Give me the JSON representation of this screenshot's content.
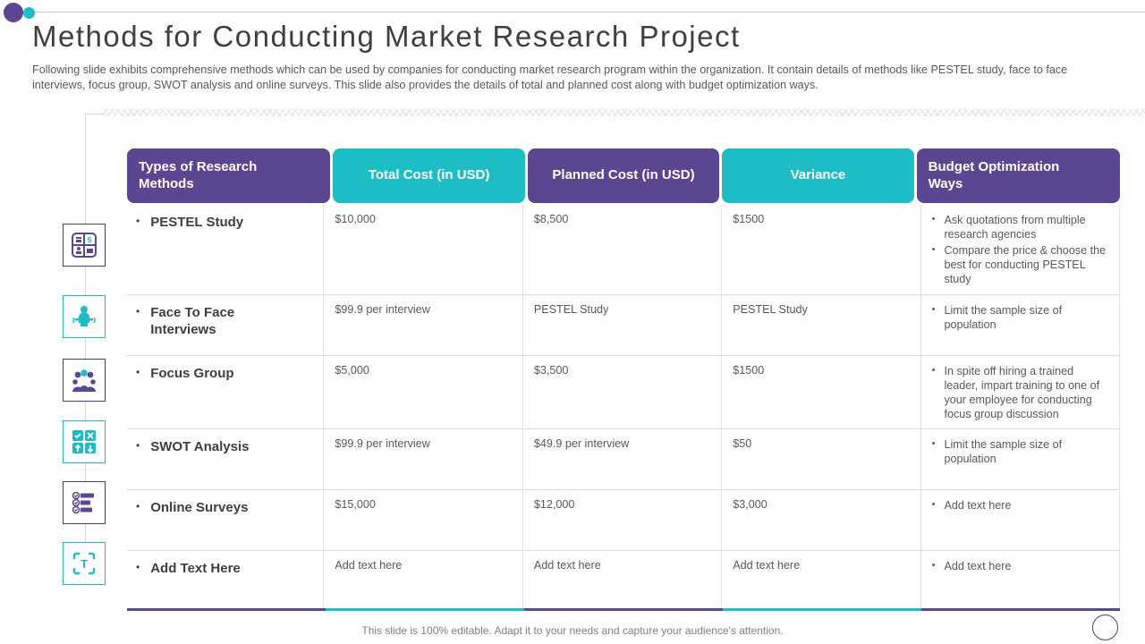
{
  "slide": {
    "title": "Methods for Conducting Market Research Project",
    "description": "Following slide exhibits comprehensive methods which can be used by companies for conducting market research program within the organization. It contain details of methods like PESTEL study, face to face interviews, focus group, SWOT analysis and online surveys. This slide also provides the details of total and planned cost along with budget optimization ways.",
    "footer_note": "This slide is 100% editable. Adapt it to your needs and capture your audience's attention."
  },
  "colors": {
    "purple": "#5b4692",
    "teal": "#1ebdc6"
  },
  "sidebar_icons": [
    {
      "name": "pestel-study-icon",
      "accent": "dark"
    },
    {
      "name": "interview-icon",
      "accent": "teal"
    },
    {
      "name": "focus-group-icon",
      "accent": "dark"
    },
    {
      "name": "swot-analysis-icon",
      "accent": "teal"
    },
    {
      "name": "survey-list-icon",
      "accent": "dark"
    },
    {
      "name": "add-text-icon",
      "accent": "teal"
    }
  ],
  "table": {
    "columns": [
      {
        "label": "Types of Research Methods",
        "color": "purple",
        "align": "left"
      },
      {
        "label": "Total Cost (in USD)",
        "color": "teal",
        "align": "center"
      },
      {
        "label": "Planned Cost (in USD)",
        "color": "purple",
        "align": "center"
      },
      {
        "label": "Variance",
        "color": "teal",
        "align": "center"
      },
      {
        "label": "Budget Optimization Ways",
        "color": "purple",
        "align": "left"
      }
    ],
    "rows": [
      {
        "method": "PESTEL Study",
        "total_cost": "$10,000",
        "planned_cost": "$8,500",
        "variance": "$1500",
        "budget_optimization": [
          "Ask quotations from multiple research agencies",
          "Compare the price & choose the best for conducting PESTEL study"
        ]
      },
      {
        "method": "Face To Face Interviews",
        "total_cost": "$99.9 per interview",
        "planned_cost": "PESTEL Study",
        "variance": "PESTEL Study",
        "budget_optimization": [
          "Limit the sample size of population"
        ]
      },
      {
        "method": "Focus Group",
        "total_cost": "$5,000",
        "planned_cost": "$3,500",
        "variance": "$1500",
        "budget_optimization": [
          "In spite off hiring a trained leader, impart training to one of your employee for conducting focus group discussion"
        ]
      },
      {
        "method": "SWOT Analysis",
        "total_cost": "$99.9 per interview",
        "planned_cost": "$49.9 per interview",
        "variance": "$50",
        "budget_optimization": [
          "Limit the sample size of population"
        ]
      },
      {
        "method": "Online Surveys",
        "total_cost": "$15,000",
        "planned_cost": "$12,000",
        "variance": "$3,000",
        "budget_optimization": [
          "Add text here"
        ]
      },
      {
        "method": "Add Text Here",
        "total_cost": "Add text here",
        "planned_cost": "Add text here",
        "variance": "Add text here",
        "budget_optimization": [
          "Add text here"
        ]
      }
    ]
  }
}
